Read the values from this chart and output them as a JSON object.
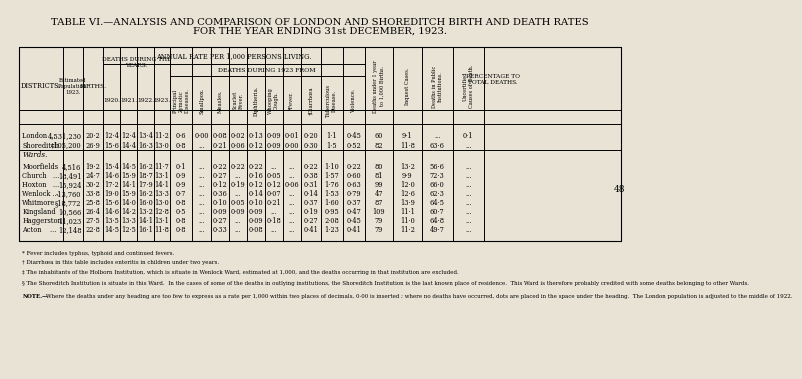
{
  "title1": "TABLE VI.—ANALYSIS AND COMPARISON OF LONDON AND SHOREDITCH BIRTH AND DEATH RATES",
  "title2": "FOR THE YEAR ENDING 31st DECEMBER, 1923.",
  "bg_color": "#e8e3d5",
  "rows": [
    {
      "district": "London ...",
      "pop": "4,531,230",
      "births": "20·2",
      "y1920": "12·4",
      "y1921": "12·4",
      "y1922": "13·4",
      "y1923": "11·2",
      "principal": "0·6",
      "smallpox": "0·00",
      "measles": "0·08",
      "scarlet": "0·02",
      "diphtheria": "0·13",
      "whooping": "0·09",
      "fever": "0·01",
      "diarrhoea": "0·20",
      "tuberculous": "1·1",
      "violence": "0·45",
      "deaths_under1": "60",
      "inquest": "9·1",
      "deaths_public": "...",
      "uncertified": "0·1",
      "is_section": false
    },
    {
      "district": "Shoreditch",
      "pop": "‡105,200",
      "births": "26·9",
      "y1920": "15·6",
      "y1921": "14·4",
      "y1922": "16·3",
      "y1923": "13·0",
      "principal": "0·8",
      "smallpox": "...",
      "measles": "0·21",
      "scarlet": "0·06",
      "diphtheria": "0·12",
      "whooping": "0·09",
      "fever": "0·00",
      "diarrhoea": "0·30",
      "tuberculous": "1·5",
      "violence": "0·52",
      "deaths_under1": "82",
      "inquest": "11·8",
      "deaths_public": "63·6",
      "uncertified": "...",
      "is_section": false
    },
    {
      "district": "Wards.",
      "pop": "",
      "births": "",
      "y1920": "",
      "y1921": "",
      "y1922": "",
      "y1923": "",
      "principal": "",
      "smallpox": "",
      "measles": "",
      "scarlet": "",
      "diphtheria": "",
      "whooping": "",
      "fever": "",
      "diarrhoea": "",
      "tuberculous": "",
      "violence": "",
      "deaths_under1": "",
      "inquest": "",
      "deaths_public": "",
      "uncertified": "",
      "is_section": true
    },
    {
      "district": "Moorfields",
      "pop": "4,516",
      "births": "19·2",
      "y1920": "15·4",
      "y1921": "14·5",
      "y1922": "16·2",
      "y1923": "11·7",
      "principal": "0·1",
      "smallpox": "...",
      "measles": "0·22",
      "scarlet": "0·22",
      "diphtheria": "0·22",
      "whooping": "...",
      "fever": "...",
      "diarrhoea": "0·22",
      "tuberculous": "1·10",
      "violence": "0·22",
      "deaths_under1": "80",
      "inquest": "13·2",
      "deaths_public": "56·6",
      "uncertified": "...",
      "is_section": false
    },
    {
      "district": "Church   ...",
      "pop": "18,491",
      "births": "24·7",
      "y1920": "14·6",
      "y1921": "15·9",
      "y1922": "18·7",
      "y1923": "13·1",
      "principal": "0·9",
      "smallpox": "...",
      "measles": "0·27",
      "scarlet": "...",
      "diphtheria": "0·16",
      "whooping": "0·05",
      "fever": "...",
      "diarrhoea": "0·38",
      "tuberculous": "1·57",
      "violence": "0·60",
      "deaths_under1": "81",
      "inquest": "9·9",
      "deaths_public": "72·3",
      "uncertified": "...",
      "is_section": false
    },
    {
      "district": "Hoxton   ...",
      "pop": "15,924",
      "births": "30·2",
      "y1920": "17·2",
      "y1921": "14·1",
      "y1922": "17·9",
      "y1923": "14·1",
      "principal": "0·9",
      "smallpox": "...",
      "measles": "0·12",
      "scarlet": "0·19",
      "diphtheria": "0·12",
      "whooping": "0·12",
      "fever": "0·06",
      "diarrhoea": "0·31",
      "tuberculous": "1·76",
      "violence": "0·63",
      "deaths_under1": "99",
      "inquest": "12·0",
      "deaths_public": "66·0",
      "uncertified": "...",
      "is_section": false
    },
    {
      "district": "Wenlock ...",
      "pop": "‑13,760",
      "births": "33·8",
      "y1920": "19·0",
      "y1921": "15·9",
      "y1922": "16·2",
      "y1923": "13·3",
      "principal": "0·7",
      "smallpox": "...",
      "measles": "0·36",
      "scarlet": "...",
      "diphtheria": "0·14",
      "whooping": "0·07",
      "fever": "...",
      "diarrhoea": "0·14",
      "tuberculous": "1·53",
      "violence": "0·79",
      "deaths_under1": "47",
      "inquest": "12·6",
      "deaths_public": "62·3",
      "uncertified": "...",
      "is_section": false
    },
    {
      "district": "Whitmore",
      "pop": "§18,772",
      "births": "25·8",
      "y1920": "15·6",
      "y1921": "14·0",
      "y1922": "16·0",
      "y1923": "13·0",
      "principal": "0·8",
      "smallpox": "...",
      "measles": "0·10",
      "scarlet": "0·05",
      "diphtheria": "0·10",
      "whooping": "0·21",
      "fever": "...",
      "diarrhoea": "0·37",
      "tuberculous": "1·60",
      "violence": "0·37",
      "deaths_under1": "87",
      "inquest": "13·9",
      "deaths_public": "64·5",
      "uncertified": "...",
      "is_section": false
    },
    {
      "district": "Kingsland",
      "pop": "10,566",
      "births": "26·4",
      "y1920": "14·6",
      "y1921": "14·2",
      "y1922": "13·2",
      "y1923": "12·8",
      "principal": "0·5",
      "smallpox": "...",
      "measles": "0·09",
      "scarlet": "0·09",
      "diphtheria": "0·09",
      "whooping": "...",
      "fever": "...",
      "diarrhoea": "0·19",
      "tuberculous": "0·95",
      "violence": "0·47",
      "deaths_under1": "109",
      "inquest": "11·1",
      "deaths_public": "60·7",
      "uncertified": "...",
      "is_section": false
    },
    {
      "district": "Haggerston",
      "pop": "11,023",
      "births": "27·5",
      "y1920": "13·5",
      "y1921": "13·3",
      "y1922": "14·1",
      "y1923": "13·1",
      "principal": "0·8",
      "smallpox": "...",
      "measles": "0·27",
      "scarlet": "...",
      "diphtheria": "0·09",
      "whooping": "0·18",
      "fever": "...",
      "diarrhoea": "0·27",
      "tuberculous": "2·08",
      "violence": "0·45",
      "deaths_under1": "79",
      "inquest": "11·0",
      "deaths_public": "64·8",
      "uncertified": "...",
      "is_section": false
    },
    {
      "district": "Acton    ...",
      "pop": "12,148",
      "births": "22·8",
      "y1920": "14·5",
      "y1921": "12·5",
      "y1922": "16·1",
      "y1923": "11·8",
      "principal": "0·8",
      "smallpox": "...",
      "measles": "0·33",
      "scarlet": "...",
      "diphtheria": "0·08",
      "whooping": "...",
      "fever": "...",
      "diarrhoea": "0·41",
      "tuberculous": "1·23",
      "violence": "0·41",
      "deaths_under1": "79",
      "inquest": "11·2",
      "deaths_public": "49·7",
      "uncertified": "...",
      "is_section": false
    }
  ],
  "footnotes": [
    "* Fever includes typhus, typhoid and continued fevers.",
    "† Diarrhœa in this table includes enteritis in children under two years.",
    "‡ The inhabitants of the Holborn Institution, which is situate in Wenlock Ward, estimated at 1,000, and the deaths occurring in that institution are excluded.",
    "§ The Shoreditch Institution is situate in this Ward.  In the cases of some of the deaths in outlying institutions, the Shoreditch Institution is the last known place of residence.  This Ward is therefore probably credited with some deaths belonging to other Wards.",
    "NOTE.—Where the deaths under any heading are too few to express as a rate per 1,000 within two places of decimals, 0·00 is inserted ; where no deaths have occurred, dots are placed in the space under the heading.  The London population is adjusted to the middle of 1922."
  ]
}
